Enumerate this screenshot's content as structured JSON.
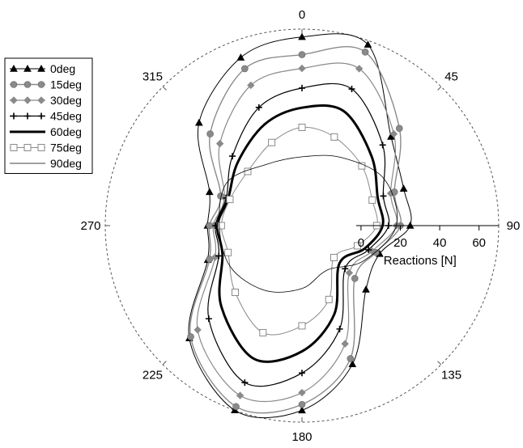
{
  "chart_data": {
    "type": "line",
    "subtype": "polar",
    "angle_unit": "deg",
    "angle_zero": "top",
    "angle_direction": "clockwise",
    "radial_axis": {
      "label": "Reactions [N]",
      "ticks": [
        0,
        20,
        40,
        60
      ],
      "range": [
        -30,
        70
      ]
    },
    "angle_ticks": [
      {
        "angle": 0,
        "label": "0"
      },
      {
        "angle": 45,
        "label": "45"
      },
      {
        "angle": 90,
        "label": "90"
      },
      {
        "angle": 135,
        "label": "135"
      },
      {
        "angle": 180,
        "label": "180"
      },
      {
        "angle": 225,
        "label": "225"
      },
      {
        "angle": 270,
        "label": "270"
      },
      {
        "angle": 315,
        "label": "315"
      }
    ],
    "grid": false,
    "legend_position": "top-left",
    "series": [
      {
        "name": "0deg",
        "color": "#000000",
        "marker": "triangle",
        "line_width": 1,
        "points": [
          [
            0,
            66
          ],
          [
            20,
            68
          ],
          [
            45,
            34
          ],
          [
            70,
            25
          ],
          [
            90,
            25
          ],
          [
            110,
            12
          ],
          [
            135,
            16
          ],
          [
            160,
            45
          ],
          [
            180,
            64
          ],
          [
            200,
            70
          ],
          [
            225,
            51
          ],
          [
            250,
            21
          ],
          [
            270,
            18
          ],
          [
            290,
            20
          ],
          [
            315,
            44
          ],
          [
            340,
            61
          ]
        ]
      },
      {
        "name": "15deg",
        "color": "#8a8a8a",
        "marker": "circle",
        "line_width": 1.4,
        "points": [
          [
            0,
            57
          ],
          [
            20,
            64
          ],
          [
            45,
            40
          ],
          [
            70,
            20
          ],
          [
            90,
            20
          ],
          [
            110,
            10
          ],
          [
            135,
            8
          ],
          [
            160,
            42
          ],
          [
            180,
            61
          ],
          [
            200,
            68
          ],
          [
            225,
            50
          ],
          [
            250,
            20
          ],
          [
            270,
            17
          ],
          [
            290,
            14
          ],
          [
            315,
            36
          ],
          [
            340,
            55
          ]
        ]
      },
      {
        "name": "30deg",
        "color": "#8a8a8a",
        "marker": "diamond",
        "line_width": 1.2,
        "points": [
          [
            0,
            50
          ],
          [
            20,
            55
          ],
          [
            45,
            36
          ],
          [
            70,
            18
          ],
          [
            90,
            18
          ],
          [
            110,
            8
          ],
          [
            135,
            4
          ],
          [
            160,
            34
          ],
          [
            180,
            55
          ],
          [
            200,
            62
          ],
          [
            225,
            45
          ],
          [
            250,
            17
          ],
          [
            270,
            15
          ],
          [
            290,
            12
          ],
          [
            315,
            29
          ],
          [
            340,
            46
          ]
        ]
      },
      {
        "name": "45deg",
        "color": "#000000",
        "marker": "plus",
        "line_width": 1.2,
        "points": [
          [
            0,
            40
          ],
          [
            20,
            44
          ],
          [
            45,
            28
          ],
          [
            70,
            14
          ],
          [
            90,
            14
          ],
          [
            110,
            6
          ],
          [
            135,
            1
          ],
          [
            160,
            26
          ],
          [
            180,
            45
          ],
          [
            200,
            55
          ],
          [
            225,
            37
          ],
          [
            250,
            15
          ],
          [
            270,
            14
          ],
          [
            290,
            11
          ],
          [
            315,
            20
          ],
          [
            340,
            34
          ]
        ]
      },
      {
        "name": "60deg",
        "color": "#000000",
        "marker": "none",
        "line_width": 3,
        "points": [
          [
            0,
            30
          ],
          [
            20,
            32
          ],
          [
            45,
            20
          ],
          [
            70,
            11
          ],
          [
            90,
            11
          ],
          [
            110,
            4
          ],
          [
            135,
            -3
          ],
          [
            160,
            18
          ],
          [
            180,
            34
          ],
          [
            200,
            42
          ],
          [
            225,
            28
          ],
          [
            250,
            13
          ],
          [
            270,
            13
          ],
          [
            290,
            10
          ],
          [
            315,
            16
          ],
          [
            340,
            25
          ]
        ]
      },
      {
        "name": "75deg",
        "color": "#8a8a8a",
        "marker": "square",
        "line_width": 1,
        "points": [
          [
            0,
            20
          ],
          [
            20,
            18
          ],
          [
            45,
            13
          ],
          [
            70,
            8
          ],
          [
            90,
            8
          ],
          [
            110,
            0
          ],
          [
            135,
            -7
          ],
          [
            160,
            10
          ],
          [
            180,
            21
          ],
          [
            200,
            28
          ],
          [
            225,
            18
          ],
          [
            250,
            10
          ],
          [
            270,
            11
          ],
          [
            290,
            9
          ],
          [
            315,
            9
          ],
          [
            340,
            15
          ]
        ]
      },
      {
        "name": "90deg",
        "color": "#000000",
        "marker": "none",
        "line_width": 0.8,
        "points": [
          [
            0,
            5
          ],
          [
            30,
            10
          ],
          [
            60,
            18
          ],
          [
            90,
            18
          ],
          [
            120,
            6
          ],
          [
            150,
            -4
          ],
          [
            180,
            2
          ],
          [
            210,
            8
          ],
          [
            240,
            12
          ],
          [
            270,
            12
          ],
          [
            300,
            14
          ],
          [
            330,
            6
          ]
        ]
      }
    ]
  }
}
